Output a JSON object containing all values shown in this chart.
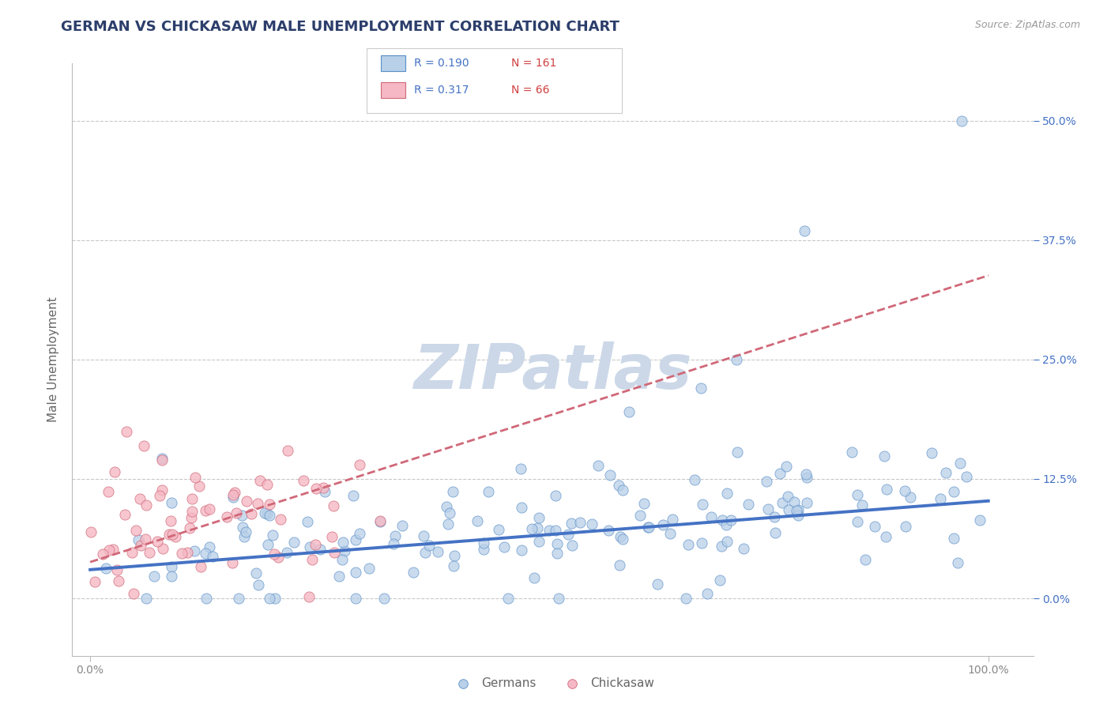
{
  "title": "GERMAN VS CHICKASAW MALE UNEMPLOYMENT CORRELATION CHART",
  "source": "Source: ZipAtlas.com",
  "ylabel": "Male Unemployment",
  "ytick_labels": [
    "0.0%",
    "12.5%",
    "25.0%",
    "37.5%",
    "50.0%"
  ],
  "ytick_values": [
    0.0,
    0.125,
    0.25,
    0.375,
    0.5
  ],
  "xtick_values": [
    0.0,
    1.0
  ],
  "xtick_labels": [
    "0.0%",
    "100.0%"
  ],
  "xlim": [
    -0.02,
    1.05
  ],
  "ylim": [
    -0.06,
    0.56
  ],
  "german_R": 0.19,
  "german_N": 161,
  "chickasaw_R": 0.317,
  "chickasaw_N": 66,
  "german_color": "#b8d0e8",
  "german_edge_color": "#5b8ec8",
  "german_line_color": "#4472C4",
  "chickasaw_color": "#f5b8c4",
  "chickasaw_edge_color": "#d06878",
  "chickasaw_line_color": "#d06878",
  "background_color": "#ffffff",
  "grid_color": "#c8c8c8",
  "title_color": "#2c3e6b",
  "watermark_color": "#ccd8e8",
  "legend_R_color": "#4472C4",
  "legend_N_color": "#d04040",
  "right_tick_color": "#4472C4",
  "bottom_legend_color": "#666666",
  "german_line_intercept": 0.03,
  "german_line_slope": 0.072,
  "chickasaw_line_intercept": 0.038,
  "chickasaw_line_slope": 0.3
}
